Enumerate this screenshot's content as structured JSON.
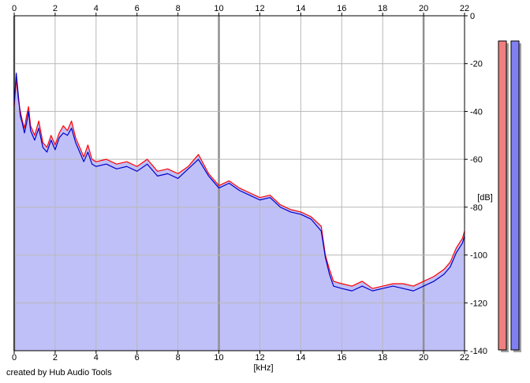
{
  "credit": "created by Hub Audio Tools",
  "chart_data": {
    "type": "line",
    "title": "",
    "xlabel": "[kHz]",
    "ylabel": "[dB]",
    "xlim": [
      0,
      22
    ],
    "ylim": [
      -140,
      0
    ],
    "x_ticks": [
      "0",
      "2",
      "4",
      "6",
      "8",
      "10",
      "12",
      "14",
      "16",
      "18",
      "20",
      "22"
    ],
    "y_ticks": [
      "0",
      "-20",
      "-40",
      "-60",
      "-80",
      "-100",
      "-120",
      "-140"
    ],
    "grid": true,
    "fill_color": "#c0c0f8",
    "series": [
      {
        "color": "#ff0000",
        "x": [
          0.0,
          0.1,
          0.2,
          0.3,
          0.4,
          0.5,
          0.6,
          0.7,
          0.8,
          1.0,
          1.2,
          1.4,
          1.6,
          1.8,
          2.0,
          2.2,
          2.4,
          2.6,
          2.8,
          3.0,
          3.2,
          3.4,
          3.6,
          3.8,
          4.0,
          4.5,
          5.0,
          5.5,
          6.0,
          6.5,
          7.0,
          7.5,
          8.0,
          8.5,
          9.0,
          9.5,
          10.0,
          10.5,
          11.0,
          11.5,
          12.0,
          12.5,
          13.0,
          13.5,
          14.0,
          14.5,
          15.0,
          15.2,
          15.4,
          15.6,
          16.0,
          16.5,
          17.0,
          17.5,
          18.0,
          18.5,
          19.0,
          19.5,
          20.0,
          20.5,
          21.0,
          21.3,
          21.6,
          21.9,
          22.0
        ],
        "y": [
          -38,
          -26,
          -35,
          -40,
          -44,
          -47,
          -42,
          -38,
          -46,
          -50,
          -44,
          -53,
          -55,
          -50,
          -54,
          -49,
          -46,
          -48,
          -44,
          -51,
          -55,
          -59,
          -54,
          -60,
          -61,
          -60,
          -62,
          -61,
          -63,
          -60,
          -65,
          -64,
          -66,
          -63,
          -58,
          -66,
          -71,
          -69,
          -72,
          -74,
          -76,
          -75,
          -79,
          -81,
          -82,
          -84,
          -88,
          -100,
          -106,
          -111,
          -112,
          -113,
          -111,
          -114,
          -113,
          -112,
          -112,
          -113,
          -111,
          -109,
          -106,
          -103,
          -97,
          -93,
          -90
        ]
      },
      {
        "color": "#0000cc",
        "x": [
          0.0,
          0.1,
          0.2,
          0.3,
          0.4,
          0.5,
          0.6,
          0.7,
          0.8,
          1.0,
          1.2,
          1.4,
          1.6,
          1.8,
          2.0,
          2.2,
          2.4,
          2.6,
          2.8,
          3.0,
          3.2,
          3.4,
          3.6,
          3.8,
          4.0,
          4.5,
          5.0,
          5.5,
          6.0,
          6.5,
          7.0,
          7.5,
          8.0,
          8.5,
          9.0,
          9.5,
          10.0,
          10.5,
          11.0,
          11.5,
          12.0,
          12.5,
          13.0,
          13.5,
          14.0,
          14.5,
          15.0,
          15.2,
          15.4,
          15.6,
          16.0,
          16.5,
          17.0,
          17.5,
          18.0,
          18.5,
          19.0,
          19.5,
          20.0,
          20.5,
          21.0,
          21.3,
          21.6,
          21.9,
          22.0
        ],
        "y": [
          -37,
          -24,
          -33,
          -42,
          -45,
          -49,
          -45,
          -40,
          -48,
          -52,
          -47,
          -55,
          -57,
          -52,
          -56,
          -51,
          -49,
          -50,
          -47,
          -53,
          -57,
          -61,
          -57,
          -62,
          -63,
          -62,
          -64,
          -63,
          -65,
          -62,
          -67,
          -66,
          -68,
          -64,
          -60,
          -67,
          -72,
          -70,
          -73,
          -75,
          -77,
          -76,
          -80,
          -82,
          -83,
          -85,
          -90,
          -101,
          -108,
          -113,
          -114,
          -115,
          -113,
          -115,
          -114,
          -113,
          -114,
          -115,
          -113,
          -111,
          -108,
          -105,
          -99,
          -95,
          -92
        ]
      }
    ]
  },
  "level_meters": [
    {
      "color": "#f08080",
      "level": 1.0
    },
    {
      "color": "#8080f0",
      "level": 1.0
    }
  ]
}
